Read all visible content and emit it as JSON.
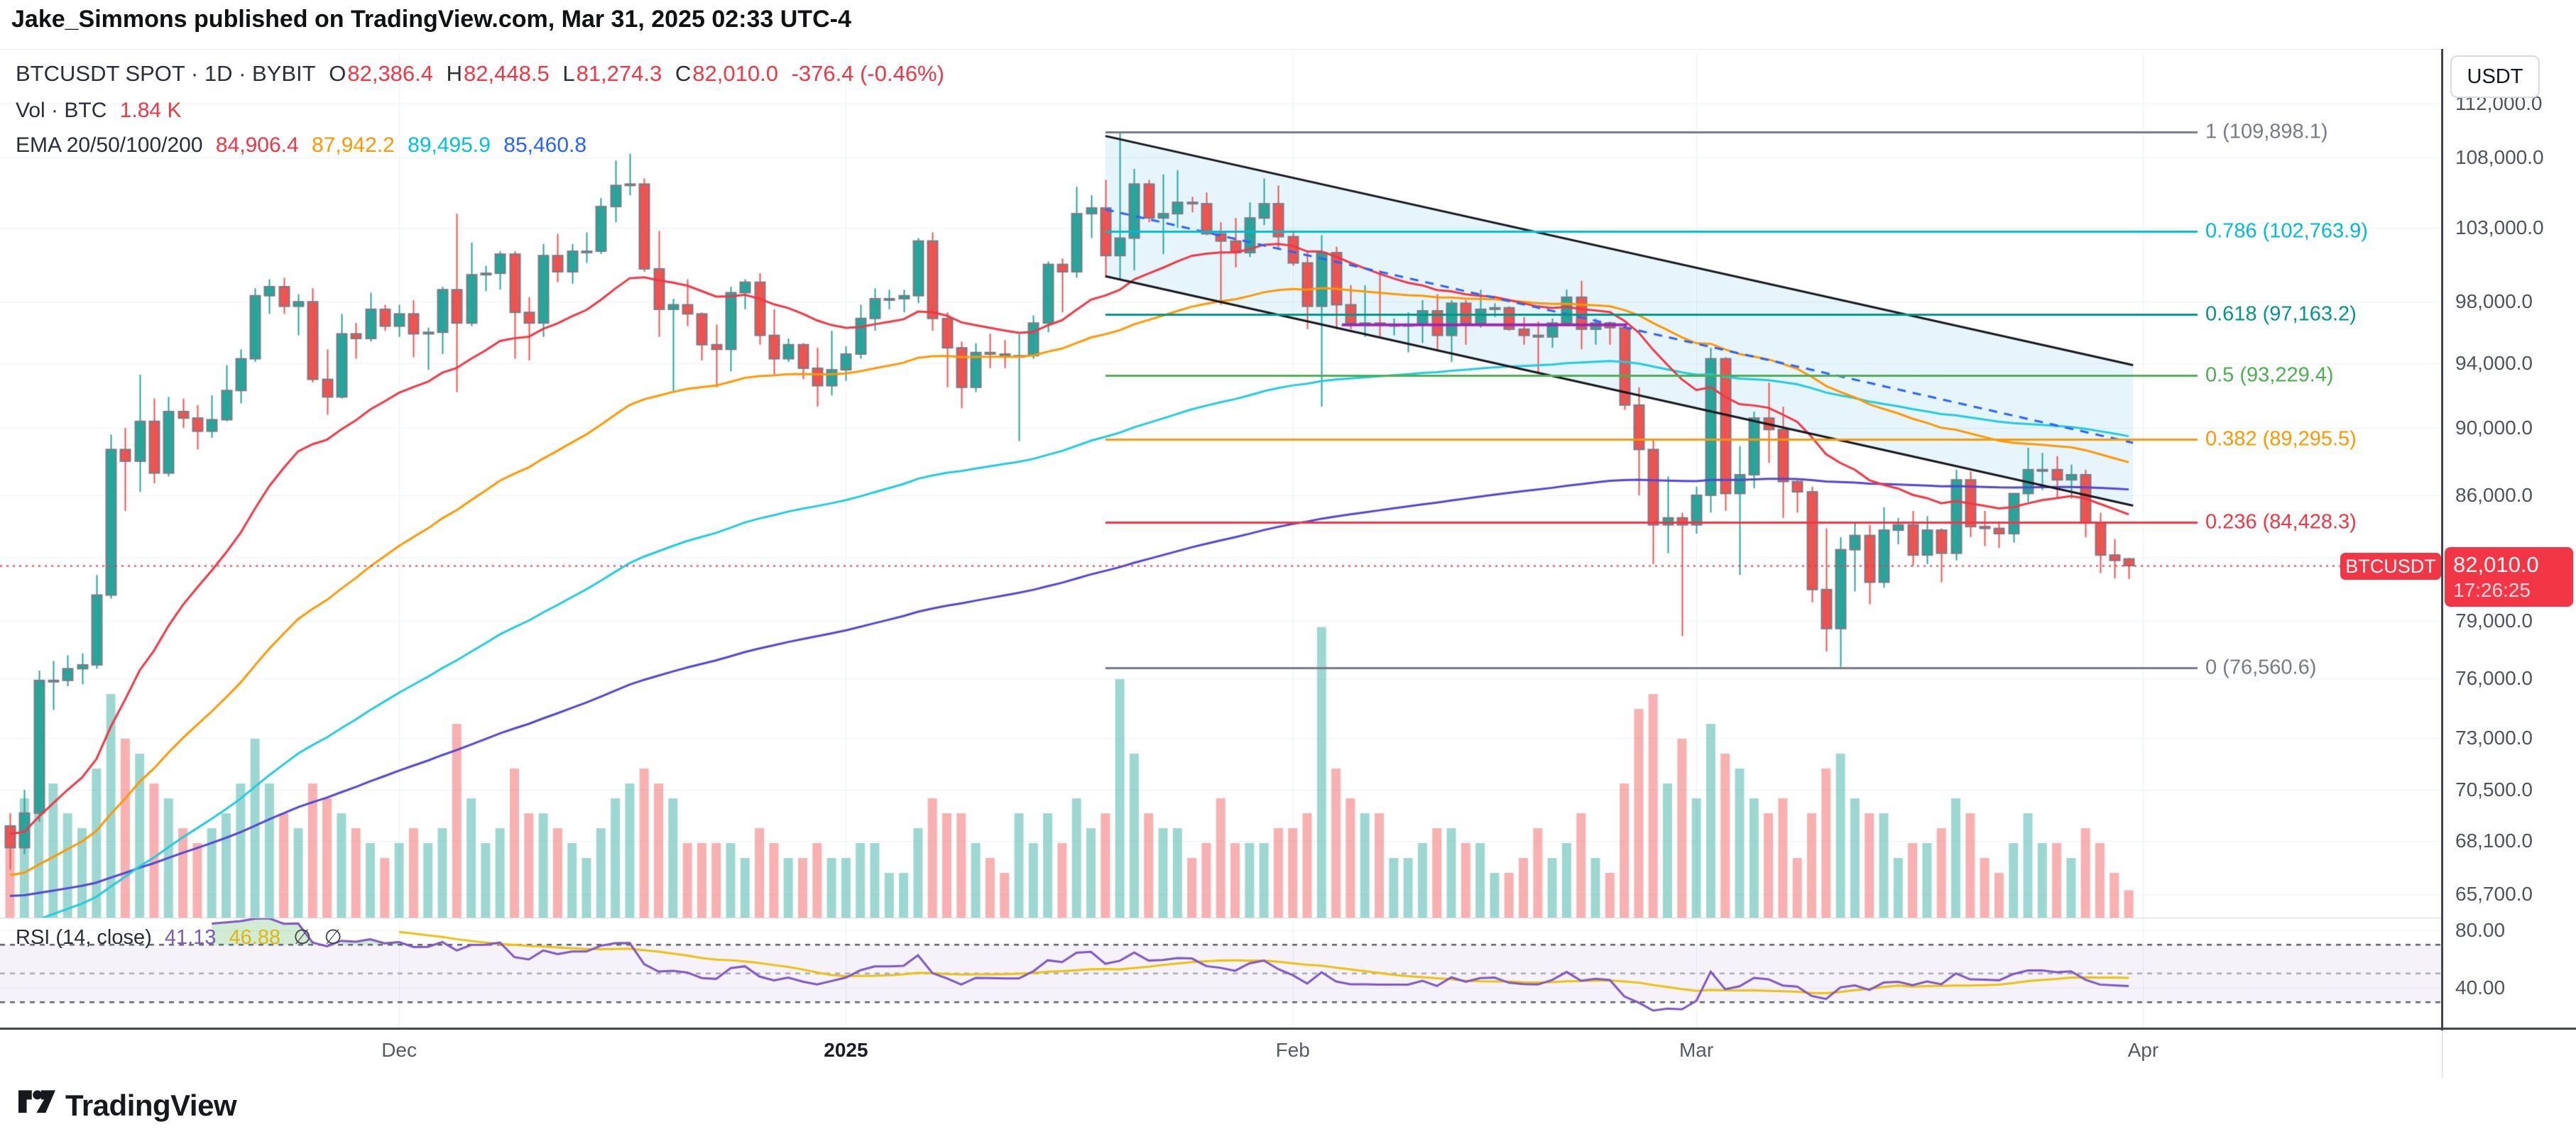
{
  "page": {
    "title": "Jake_Simmons published on TradingView.com, Mar 31, 2025 02:33 UTC-4"
  },
  "header": {
    "symbol_line": {
      "symbol": "BTCUSDT SPOT · 1D · BYBIT",
      "o_label": "O",
      "o": "82,386.4",
      "h_label": "H",
      "h": "82,448.5",
      "l_label": "L",
      "l": "81,274.3",
      "c_label": "C",
      "c": "82,010.0",
      "change": "-376.4 (-0.46%)"
    },
    "vol_line": {
      "label": "Vol · BTC",
      "value": "1.84 K"
    },
    "ema_line": {
      "label": "EMA 20/50/100/200",
      "v20": "84,906.4",
      "v50": "87,942.2",
      "v100": "89,495.9",
      "v200": "85,460.8"
    }
  },
  "rsi_legend": {
    "label": "RSI (14, close)",
    "rsi_value": "41.13",
    "ma_value": "46.88",
    "empty1": "∅",
    "empty2": "∅"
  },
  "price_badge": {
    "symbol": "BTCUSDT",
    "price": "82,010.0",
    "countdown": "17:26:25"
  },
  "axes": {
    "currency_button": "USDT",
    "price_ticks": [
      {
        "label": "112,000.0",
        "price": 112000
      },
      {
        "label": "108,000.0",
        "price": 108000
      },
      {
        "label": "103,000.0",
        "price": 103000
      },
      {
        "label": "98,000.0",
        "price": 98000
      },
      {
        "label": "94,000.0",
        "price": 94000
      },
      {
        "label": "90,000.0",
        "price": 90000
      },
      {
        "label": "86,000.0",
        "price": 86000
      },
      {
        "label": "79,000.0",
        "price": 79000
      },
      {
        "label": "76,000.0",
        "price": 76000
      },
      {
        "label": "73,000.0",
        "price": 73000
      },
      {
        "label": "70,500.0",
        "price": 70500
      },
      {
        "label": "68,100.0",
        "price": 68100
      },
      {
        "label": "65,700.0",
        "price": 65700
      }
    ],
    "rsi_ticks": [
      {
        "label": "80.00",
        "value": 80
      },
      {
        "label": "40.00",
        "value": 40
      }
    ],
    "time_ticks": [
      {
        "label": "Dec",
        "index": 27,
        "year": false
      },
      {
        "label": "2025",
        "index": 58,
        "year": true
      },
      {
        "label": "Feb",
        "index": 89,
        "year": false
      },
      {
        "label": "Mar",
        "index": 117,
        "year": false
      },
      {
        "label": "Apr",
        "index": 148,
        "year": false
      }
    ]
  },
  "footer": {
    "brand": "TradingView"
  },
  "colors": {
    "up": "#26a69a",
    "down": "#ef5350",
    "candle_border": "#787b86",
    "vol_up": "rgba(38,166,154,0.45)",
    "vol_down": "rgba(239,83,80,0.45)",
    "ema20": "#f23645",
    "ema50": "#ff9800",
    "ema100": "#22cbdf",
    "ema200": "#5246d6",
    "grid": "#edf1f7",
    "channel_fill": "rgba(62,180,230,0.13)",
    "channel_line": "#16171c",
    "channel_mid": "#2962ff",
    "fib_gray": "#787b86",
    "fib_cyan": "#00bcd4",
    "fib_teal": "#009688",
    "fib_green": "#4caf50",
    "fib_orange": "#ff9800",
    "fib_red": "#f23645",
    "rsi_line": "#7e57c2",
    "rsi_ma": "#ecc10e",
    "rsi_band": "rgba(126,87,194,0.08)",
    "last_price_line": "#f23645",
    "support_zone": "#9c27b0"
  },
  "chart_data": {
    "type": "candlestick",
    "symbol": "BTCUSDT",
    "timeframe": "1D",
    "start_date": "2024-11-04",
    "price_scale_factor": 1000,
    "last_price": 82010,
    "axis_range_visible": [
      64000,
      113500
    ],
    "grid": true,
    "candles_ohlcv_kUSDT": [
      [
        68.8,
        69.4,
        66.8,
        67.8,
        6
      ],
      [
        67.8,
        70.5,
        67.5,
        69.4,
        8
      ],
      [
        69.4,
        76.4,
        69.0,
        75.9,
        14
      ],
      [
        75.9,
        76.9,
        74.4,
        75.9,
        9
      ],
      [
        75.9,
        77.2,
        75.6,
        76.5,
        7
      ],
      [
        76.5,
        77.3,
        75.7,
        76.7,
        6
      ],
      [
        76.7,
        81.5,
        76.5,
        80.4,
        10
      ],
      [
        80.4,
        89.6,
        80.2,
        88.7,
        15
      ],
      [
        88.7,
        90.0,
        85.1,
        88.0,
        12
      ],
      [
        88.0,
        93.3,
        86.2,
        90.4,
        11
      ],
      [
        90.4,
        91.8,
        86.7,
        87.3,
        9
      ],
      [
        87.3,
        91.9,
        87.1,
        91.0,
        8
      ],
      [
        91.0,
        91.8,
        90.0,
        90.6,
        6
      ],
      [
        90.6,
        91.4,
        88.7,
        89.8,
        5
      ],
      [
        89.8,
        92.0,
        89.4,
        90.5,
        6
      ],
      [
        90.5,
        93.9,
        90.4,
        92.3,
        7
      ],
      [
        92.3,
        94.9,
        91.5,
        94.3,
        9
      ],
      [
        94.3,
        98.9,
        94.1,
        98.4,
        12
      ],
      [
        98.4,
        99.5,
        97.2,
        99.0,
        9
      ],
      [
        99.0,
        99.6,
        97.2,
        97.7,
        7
      ],
      [
        97.7,
        98.5,
        95.8,
        98.0,
        6
      ],
      [
        98.0,
        98.9,
        92.8,
        93.0,
        9
      ],
      [
        93.0,
        94.9,
        90.8,
        91.9,
        8
      ],
      [
        91.9,
        97.2,
        91.8,
        95.9,
        7
      ],
      [
        95.9,
        96.6,
        94.3,
        95.6,
        6
      ],
      [
        95.6,
        98.6,
        95.4,
        97.5,
        5
      ],
      [
        97.5,
        97.8,
        96.1,
        96.4,
        4
      ],
      [
        96.4,
        97.8,
        95.7,
        97.2,
        5
      ],
      [
        97.2,
        98.1,
        94.4,
        95.9,
        6
      ],
      [
        95.9,
        96.3,
        93.6,
        96.0,
        5
      ],
      [
        96.0,
        99.0,
        94.6,
        98.8,
        6
      ],
      [
        98.8,
        104.0,
        92.2,
        96.6,
        13
      ],
      [
        96.6,
        102.0,
        96.4,
        99.8,
        8
      ],
      [
        99.8,
        100.4,
        98.7,
        99.9,
        5
      ],
      [
        99.9,
        101.4,
        98.8,
        101.2,
        6
      ],
      [
        101.2,
        101.4,
        94.3,
        97.3,
        10
      ],
      [
        97.3,
        98.3,
        94.2,
        96.6,
        7
      ],
      [
        96.6,
        101.9,
        95.7,
        101.1,
        7
      ],
      [
        101.1,
        102.6,
        99.3,
        100.0,
        6
      ],
      [
        100.0,
        101.9,
        99.2,
        101.4,
        5
      ],
      [
        101.4,
        102.7,
        100.6,
        101.4,
        4
      ],
      [
        101.4,
        105.1,
        101.2,
        104.5,
        6
      ],
      [
        104.5,
        107.8,
        103.4,
        106.0,
        8
      ],
      [
        106.0,
        108.3,
        105.3,
        106.1,
        9
      ],
      [
        106.1,
        106.5,
        100.0,
        100.2,
        10
      ],
      [
        100.2,
        102.8,
        95.7,
        97.5,
        9
      ],
      [
        97.5,
        98.2,
        92.2,
        97.8,
        8
      ],
      [
        97.8,
        99.5,
        96.4,
        97.2,
        5
      ],
      [
        97.2,
        97.3,
        94.2,
        95.2,
        5
      ],
      [
        95.2,
        96.5,
        92.5,
        94.9,
        5
      ],
      [
        94.9,
        99.0,
        93.5,
        98.6,
        5
      ],
      [
        98.6,
        99.5,
        97.5,
        99.3,
        4
      ],
      [
        99.3,
        99.9,
        95.2,
        95.8,
        6
      ],
      [
        95.8,
        97.5,
        93.3,
        94.3,
        5
      ],
      [
        94.3,
        95.6,
        94.1,
        95.2,
        4
      ],
      [
        95.2,
        95.3,
        93.0,
        93.7,
        4
      ],
      [
        93.7,
        95.0,
        91.3,
        92.6,
        5
      ],
      [
        92.6,
        96.1,
        92.0,
        93.6,
        4
      ],
      [
        93.6,
        95.1,
        92.9,
        94.6,
        4
      ],
      [
        94.6,
        97.8,
        94.3,
        96.9,
        5
      ],
      [
        96.9,
        98.9,
        96.1,
        98.2,
        5
      ],
      [
        98.2,
        98.8,
        97.5,
        98.2,
        3
      ],
      [
        98.2,
        98.8,
        97.3,
        98.4,
        3
      ],
      [
        98.4,
        102.3,
        97.9,
        102.1,
        6
      ],
      [
        102.1,
        102.7,
        96.1,
        96.9,
        8
      ],
      [
        96.9,
        97.3,
        92.5,
        95.0,
        7
      ],
      [
        95.0,
        95.4,
        91.2,
        92.5,
        7
      ],
      [
        92.5,
        95.3,
        92.2,
        94.7,
        5
      ],
      [
        94.7,
        95.9,
        93.7,
        94.6,
        4
      ],
      [
        94.6,
        95.5,
        93.7,
        94.5,
        3
      ],
      [
        94.5,
        95.9,
        89.2,
        94.5,
        7
      ],
      [
        94.5,
        97.1,
        94.3,
        96.6,
        5
      ],
      [
        96.6,
        100.7,
        96.0,
        100.5,
        7
      ],
      [
        100.5,
        100.9,
        97.3,
        100.0,
        5
      ],
      [
        100.0,
        105.9,
        99.6,
        104.0,
        8
      ],
      [
        104.0,
        105.3,
        102.3,
        104.4,
        6
      ],
      [
        104.4,
        106.4,
        99.6,
        101.1,
        7
      ],
      [
        101.1,
        109.9,
        99.5,
        102.3,
        16
      ],
      [
        102.3,
        107.2,
        100.1,
        106.1,
        11
      ],
      [
        106.1,
        106.4,
        103.4,
        103.7,
        7
      ],
      [
        103.7,
        106.8,
        101.2,
        104.0,
        6
      ],
      [
        104.0,
        107.1,
        103.0,
        104.8,
        6
      ],
      [
        104.8,
        105.2,
        104.1,
        104.7,
        4
      ],
      [
        104.7,
        105.5,
        102.5,
        102.6,
        5
      ],
      [
        102.6,
        103.4,
        97.8,
        102.1,
        8
      ],
      [
        102.1,
        103.7,
        100.3,
        101.3,
        5
      ],
      [
        101.3,
        104.8,
        101.0,
        103.7,
        5
      ],
      [
        103.7,
        106.5,
        103.2,
        104.7,
        5
      ],
      [
        104.7,
        106.0,
        101.6,
        102.4,
        6
      ],
      [
        102.4,
        102.8,
        100.4,
        100.6,
        6
      ],
      [
        100.6,
        101.4,
        96.2,
        97.7,
        7
      ],
      [
        97.7,
        102.5,
        91.3,
        101.3,
        19.5
      ],
      [
        101.3,
        101.7,
        96.2,
        97.8,
        10
      ],
      [
        97.8,
        99.1,
        96.2,
        96.6,
        8
      ],
      [
        96.6,
        99.1,
        95.7,
        96.6,
        7
      ],
      [
        96.6,
        100.1,
        95.6,
        96.5,
        7
      ],
      [
        96.5,
        96.9,
        95.8,
        96.5,
        4
      ],
      [
        96.5,
        97.3,
        94.7,
        96.5,
        4
      ],
      [
        96.5,
        98.1,
        95.3,
        97.4,
        5
      ],
      [
        97.4,
        98.5,
        94.9,
        95.8,
        6
      ],
      [
        95.8,
        98.1,
        94.1,
        97.9,
        6
      ],
      [
        97.9,
        98.1,
        95.2,
        96.6,
        5
      ],
      [
        96.6,
        98.8,
        96.3,
        97.5,
        5
      ],
      [
        97.5,
        97.9,
        97.0,
        97.6,
        3
      ],
      [
        97.6,
        97.7,
        96.1,
        96.2,
        3
      ],
      [
        96.2,
        97.0,
        95.2,
        95.8,
        4
      ],
      [
        95.8,
        96.7,
        93.4,
        95.7,
        6
      ],
      [
        95.7,
        96.9,
        95.0,
        96.6,
        4
      ],
      [
        96.6,
        98.8,
        96.4,
        98.3,
        5
      ],
      [
        98.3,
        99.4,
        94.9,
        96.2,
        7
      ],
      [
        96.2,
        96.9,
        95.2,
        96.6,
        4
      ],
      [
        96.6,
        96.7,
        95.2,
        96.3,
        3
      ],
      [
        96.3,
        96.5,
        91.1,
        91.4,
        9
      ],
      [
        91.4,
        92.5,
        86.0,
        88.7,
        14
      ],
      [
        88.7,
        89.3,
        82.1,
        84.3,
        15
      ],
      [
        84.3,
        87.1,
        82.7,
        84.7,
        9
      ],
      [
        84.7,
        85.0,
        78.2,
        84.3,
        12
      ],
      [
        84.3,
        86.5,
        83.8,
        86.0,
        8
      ],
      [
        86.0,
        95.0,
        85.0,
        94.3,
        13
      ],
      [
        94.3,
        94.4,
        85.1,
        86.1,
        11
      ],
      [
        86.1,
        88.9,
        81.5,
        87.2,
        10
      ],
      [
        87.2,
        91.0,
        86.4,
        90.6,
        8
      ],
      [
        90.6,
        92.8,
        87.9,
        89.9,
        7
      ],
      [
        89.9,
        91.3,
        84.7,
        86.8,
        8
      ],
      [
        86.8,
        86.9,
        85.0,
        86.2,
        4
      ],
      [
        86.2,
        86.5,
        80.0,
        80.7,
        7
      ],
      [
        80.7,
        84.1,
        77.4,
        78.6,
        10
      ],
      [
        78.6,
        83.6,
        76.6,
        82.9,
        11
      ],
      [
        82.9,
        84.4,
        80.6,
        83.7,
        8
      ],
      [
        83.7,
        84.3,
        79.9,
        81.1,
        7
      ],
      [
        81.1,
        85.3,
        80.8,
        84.0,
        7
      ],
      [
        84.0,
        84.7,
        83.2,
        84.3,
        4
      ],
      [
        84.3,
        85.1,
        82.0,
        82.6,
        5
      ],
      [
        82.6,
        84.8,
        82.1,
        84.0,
        5
      ],
      [
        84.0,
        84.1,
        81.1,
        82.7,
        6
      ],
      [
        82.7,
        87.5,
        82.3,
        86.9,
        8
      ],
      [
        86.9,
        87.4,
        83.6,
        84.2,
        7
      ],
      [
        84.2,
        85.1,
        83.1,
        84.1,
        4
      ],
      [
        84.1,
        84.5,
        83.0,
        83.8,
        3
      ],
      [
        83.8,
        86.1,
        83.3,
        86.1,
        5
      ],
      [
        86.1,
        88.8,
        85.6,
        87.5,
        7
      ],
      [
        87.5,
        88.5,
        86.3,
        87.5,
        5
      ],
      [
        87.5,
        88.3,
        85.8,
        86.9,
        5
      ],
      [
        86.9,
        87.8,
        85.8,
        87.2,
        4
      ],
      [
        87.2,
        87.5,
        83.6,
        84.4,
        6
      ],
      [
        84.4,
        85.0,
        81.6,
        82.6,
        5
      ],
      [
        82.6,
        83.5,
        81.3,
        82.3,
        3
      ],
      [
        82.386,
        82.449,
        81.274,
        82.01,
        1.84
      ]
    ],
    "ema_overlays": [
      {
        "period": 20,
        "current": 84906.4
      },
      {
        "period": 50,
        "current": 87942.2
      },
      {
        "period": 100,
        "current": 89495.9
      },
      {
        "period": 200,
        "current": 85460.8
      }
    ],
    "fib_retracement": [
      {
        "label": "1 (109,898.1)",
        "ratio": 1,
        "price": 109898.1,
        "color_key": "fib_gray"
      },
      {
        "label": "0.786 (102,763.9)",
        "ratio": 0.786,
        "price": 102763.9,
        "color_key": "fib_cyan"
      },
      {
        "label": "0.618 (97,163.2)",
        "ratio": 0.618,
        "price": 97163.2,
        "color_key": "fib_teal"
      },
      {
        "label": "0.5 (93,229.4)",
        "ratio": 0.5,
        "price": 93229.4,
        "color_key": "fib_green"
      },
      {
        "label": "0.382 (89,295.5)",
        "ratio": 0.382,
        "price": 89295.5,
        "color_key": "fib_orange"
      },
      {
        "label": "0.236 (84,428.3)",
        "ratio": 0.236,
        "price": 84428.3,
        "color_key": "fib_red"
      },
      {
        "label": "0 (76,560.6)",
        "ratio": 0,
        "price": 76560.6,
        "color_key": "fib_gray"
      }
    ],
    "descending_channel": {
      "start_index": 76,
      "end_index": 147.3,
      "top_prices_kUSDT": [
        109.6,
        93.9
      ],
      "bottom_prices_kUSDT": [
        99.7,
        85.4
      ],
      "mid_dashed_prices_kUSDT": [
        104.3,
        89.1
      ]
    },
    "support_segment": {
      "start_index": 92.4,
      "end_index": 112.2,
      "price_kUSDT": 96.48
    },
    "rsi": {
      "period": 14,
      "source": "close",
      "current": 41.13,
      "ma_current": 46.88,
      "band": [
        30,
        70
      ],
      "mid": 50,
      "scale_ticks": [
        80,
        40
      ]
    }
  }
}
